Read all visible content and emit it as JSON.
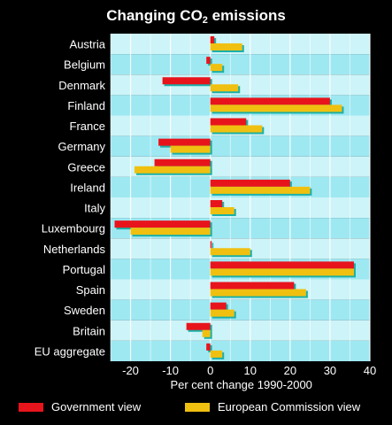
{
  "title": {
    "prefix": "Changing CO",
    "subscript": "2",
    "suffix": " emissions"
  },
  "colors": {
    "background": "#000000",
    "plot_band_light": "#cdf4f8",
    "plot_band_dark": "#9ee8f2",
    "grid": "#ffffff",
    "government": "#e8141c",
    "commission": "#f0c010",
    "shadow": "#1bb0a8",
    "text": "#ffffff"
  },
  "chart_data": {
    "type": "bar",
    "orientation": "horizontal",
    "categories": [
      "Austria",
      "Belgium",
      "Denmark",
      "Finland",
      "France",
      "Germany",
      "Greece",
      "Ireland",
      "Italy",
      "Luxembourg",
      "Netherlands",
      "Portugal",
      "Spain",
      "Sweden",
      "Britain",
      "EU aggregate"
    ],
    "series": [
      {
        "name": "Government view",
        "values": [
          1,
          -1,
          -12,
          30,
          9,
          -13,
          -14,
          20,
          3,
          -24,
          0,
          36,
          21,
          4,
          -6,
          -1
        ]
      },
      {
        "name": "European Commission view",
        "values": [
          8,
          3,
          7,
          33,
          13,
          -10,
          -19,
          25,
          6,
          -20,
          10,
          36,
          24,
          6,
          -2,
          3
        ]
      }
    ],
    "xlabel": "Per cent change 1990-2000",
    "ylabel": "",
    "xlim": [
      -25,
      40
    ],
    "xticks": [
      -20,
      -10,
      0,
      10,
      20,
      30,
      40
    ],
    "grid": true,
    "legend_position": "bottom"
  },
  "legend": {
    "government_label": "Government view",
    "commission_label": "European Commission view"
  }
}
